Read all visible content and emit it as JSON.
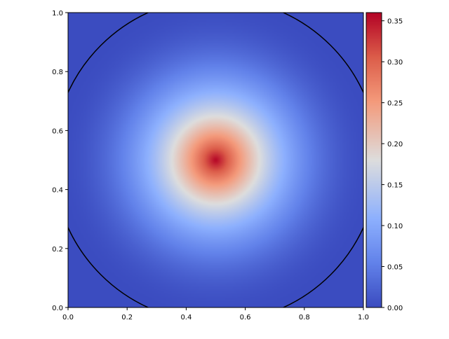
{
  "chart_data": {
    "type": "heatmap",
    "title": "",
    "xlabel": "",
    "ylabel": "",
    "xlim": [
      0.0,
      1.0
    ],
    "ylim": [
      0.0,
      1.0
    ],
    "xticks": [
      "0.0",
      "0.2",
      "0.4",
      "0.6",
      "0.8",
      "1.0"
    ],
    "yticks": [
      "0.0",
      "0.2",
      "0.4",
      "0.6",
      "0.8",
      "1.0"
    ],
    "field": {
      "description": "radially symmetric peak centered at (0.5, 0.5)",
      "center": [
        0.5,
        0.5
      ],
      "peak_value": 0.36,
      "edge_value": 0.0,
      "zero_contour_radius": 0.55
    },
    "contour": {
      "level": 0.0,
      "center": [
        0.5,
        0.5
      ],
      "radius": 0.55,
      "color": "#000000"
    },
    "colorbar": {
      "colormap": "coolwarm",
      "vmin": 0.0,
      "vmax": 0.36,
      "ticks": [
        "0.00",
        "0.05",
        "0.10",
        "0.15",
        "0.20",
        "0.25",
        "0.30",
        "0.35"
      ],
      "low_color": "#3b4cc0",
      "mid_color": "#dddddd",
      "high_color": "#b40426"
    },
    "grid": false,
    "legend": "none"
  }
}
